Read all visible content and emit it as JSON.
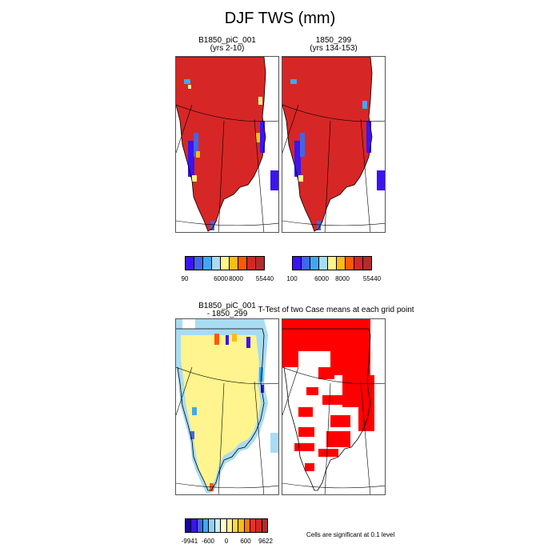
{
  "title": "DJF TWS (mm)",
  "panels": {
    "p1": {
      "title_line1": "B1850_piC_001",
      "title_line2": "(yrs 2-10)"
    },
    "p2": {
      "title_line1": "1850_299",
      "title_line2": "(yrs 134-153)"
    },
    "p3": {
      "title_line1": "B1850_piC_001",
      "title_line2": "- 1850_299"
    },
    "p4": {
      "title_line1": "T-Test of two Case means at each grid point"
    }
  },
  "colorbars": {
    "cb1": {
      "colors": [
        "#3b14f0",
        "#4166e6",
        "#3fa9ef",
        "#a8dcf2",
        "#fff48d",
        "#ffbb17",
        "#ff5a00",
        "#d72626",
        "#b52b2b"
      ],
      "labels": [
        "90",
        "6000",
        "8000",
        "55440"
      ]
    },
    "cb2": {
      "colors": [
        "#3b14f0",
        "#4166e6",
        "#3fa9ef",
        "#a8dcf2",
        "#fff48d",
        "#ffbb17",
        "#ff5a00",
        "#d72626",
        "#b52b2b"
      ],
      "labels": [
        "100",
        "6000",
        "8000",
        "55440"
      ]
    },
    "cb3": {
      "colors": [
        "#1a00b0",
        "#3b14f0",
        "#4166e6",
        "#3fa9ef",
        "#8fd1f2",
        "#c8ecf8",
        "#fffbd0",
        "#fff48d",
        "#ffd54a",
        "#ffbb17",
        "#ff7a00",
        "#f03020",
        "#d72626",
        "#b52b2b"
      ],
      "labels": [
        "-9941",
        "-600",
        "0",
        "600",
        "9622"
      ]
    }
  },
  "significance_note": "Cells are significant at 0.1 level",
  "map_colors": {
    "greenland_tws": "#d72626",
    "coast_blue": "#3b14f0",
    "diff_fill": "#fff48d",
    "diff_edge": "#a8dcf2",
    "significant": "#ff0000"
  }
}
